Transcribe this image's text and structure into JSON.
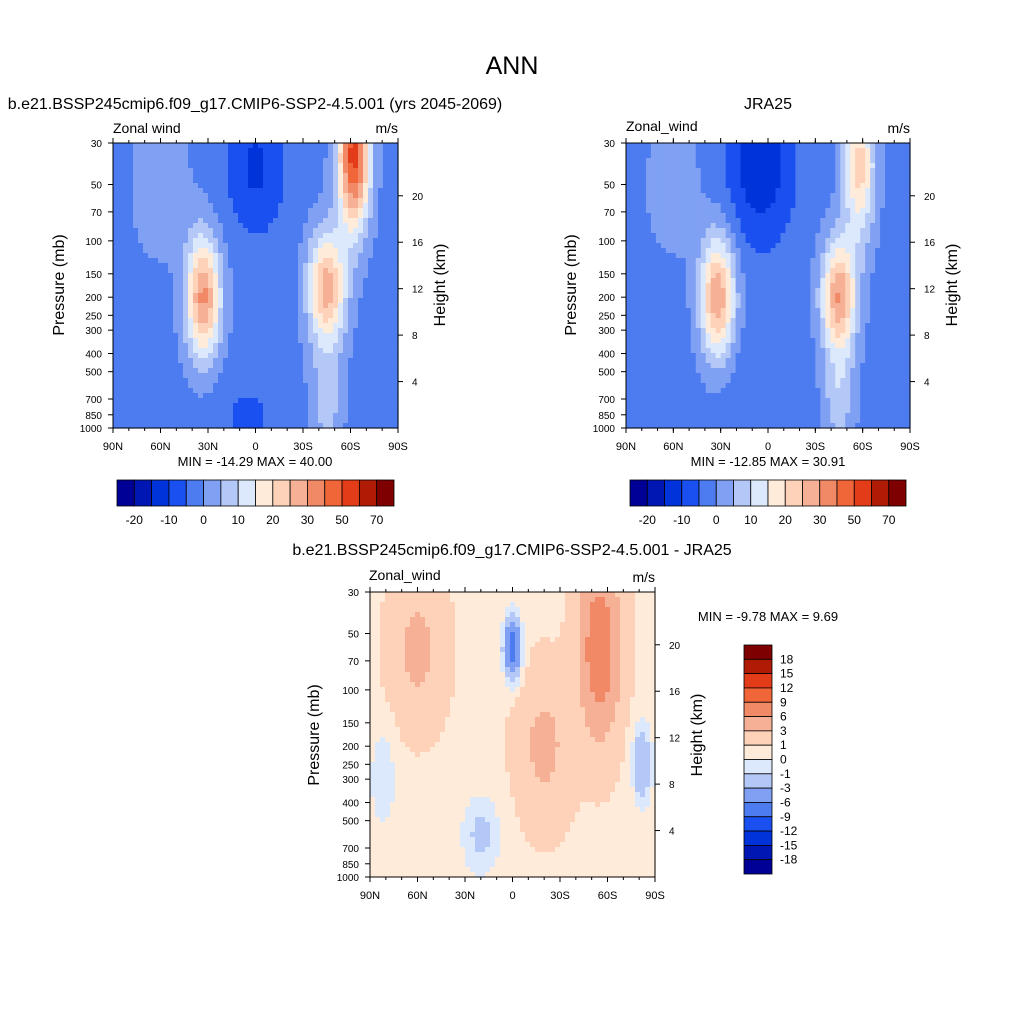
{
  "figure_title": "ANN",
  "panels": [
    {
      "title": "b.e21.BSSP245cmip6.f09_g17.CMIP6-SSP2-4.5.001 (yrs 2045-2069)",
      "left_string": "Zonal wind",
      "right_string": "m/s",
      "ylabel": "Pressure (mb)",
      "y2label": "Height (km)",
      "minmax": "MIN = -14.29  MAX =  40.00"
    },
    {
      "title": "JRA25",
      "left_string": "Zonal_wind",
      "right_string": "m/s",
      "ylabel": "Pressure (mb)",
      "y2label": "Height (km)",
      "minmax": "MIN = -12.85  MAX =  30.91"
    },
    {
      "title": "b.e21.BSSP245cmip6.f09_g17.CMIP6-SSP2-4.5.001 - JRA25",
      "left_string": "Zonal_wind",
      "right_string": "m/s",
      "ylabel": "Pressure (mb)",
      "y2label": "Height (km)",
      "minmax": "MIN =  -9.78  MAX =   9.69"
    }
  ],
  "chart_data": [
    {
      "type": "heatmap",
      "title": "b.e21.BSSP245cmip6.f09_g17.CMIP6-SSP2-4.5.001 (yrs 2045-2069)",
      "variable": "Zonal wind",
      "units": "m/s",
      "x_ticks": [
        "90N",
        "60N",
        "30N",
        "0",
        "30S",
        "60S",
        "90S"
      ],
      "y_ticks": [
        "30",
        "50",
        "70",
        "100",
        "150",
        "200",
        "250",
        "300",
        "400",
        "500",
        "700",
        "850",
        "1000"
      ],
      "y2_ticks": [
        "4",
        "8",
        "12",
        "16",
        "20"
      ],
      "xlabel": "",
      "ylabel": "Pressure (mb)",
      "y2label": "Height (km)",
      "min": -14.29,
      "max": 40.0,
      "colorbar_labels": [
        "-20",
        "-10",
        "0",
        "10",
        "20",
        "30",
        "50",
        "70"
      ],
      "colorbar_colors": [
        "#000096",
        "#0017B3",
        "#0033D9",
        "#1A4FF0",
        "#4D7BF0",
        "#7FA0F3",
        "#B3C8F7",
        "#DCE8FB",
        "#FFEBD9",
        "#FDD2B8",
        "#F6B095",
        "#F18866",
        "#F06639",
        "#E33C18",
        "#B01B06",
        "#7F0000"
      ],
      "features": [
        {
          "desc": "westerly jet NH",
          "lat": 33,
          "p": 200,
          "value": 30
        },
        {
          "desc": "westerly jet SH",
          "lat": -45,
          "p": 150,
          "value": 40
        },
        {
          "desc": "stratospheric westerlies SH",
          "lat": -60,
          "p": 40,
          "value": 40
        },
        {
          "desc": "tropical easterlies",
          "lat": 0,
          "p": 50,
          "value": -10
        }
      ]
    },
    {
      "type": "heatmap",
      "title": "JRA25",
      "variable": "Zonal_wind",
      "units": "m/s",
      "x_ticks": [
        "90N",
        "60N",
        "30N",
        "0",
        "30S",
        "60S",
        "90S"
      ],
      "y_ticks": [
        "30",
        "50",
        "70",
        "100",
        "150",
        "200",
        "250",
        "300",
        "400",
        "500",
        "700",
        "850",
        "1000"
      ],
      "y2_ticks": [
        "4",
        "8",
        "12",
        "16",
        "20"
      ],
      "xlabel": "",
      "ylabel": "Pressure (mb)",
      "y2label": "Height (km)",
      "min": -12.85,
      "max": 30.91,
      "colorbar_labels": [
        "-20",
        "-10",
        "0",
        "10",
        "20",
        "30",
        "50",
        "70"
      ],
      "colorbar_colors": [
        "#000096",
        "#0017B3",
        "#0033D9",
        "#1A4FF0",
        "#4D7BF0",
        "#7FA0F3",
        "#B3C8F7",
        "#DCE8FB",
        "#FFEBD9",
        "#FDD2B8",
        "#F6B095",
        "#F18866",
        "#F06639",
        "#E33C18",
        "#B01B06",
        "#7F0000"
      ],
      "features": [
        {
          "desc": "westerly jet NH",
          "lat": 33,
          "p": 200,
          "value": 30
        },
        {
          "desc": "westerly jet SH",
          "lat": -45,
          "p": 200,
          "value": 31
        },
        {
          "desc": "tropical easterlies",
          "lat": 5,
          "p": 40,
          "value": -12
        }
      ]
    },
    {
      "type": "heatmap",
      "title": "b.e21.BSSP245cmip6.f09_g17.CMIP6-SSP2-4.5.001 - JRA25",
      "variable": "Zonal_wind",
      "units": "m/s",
      "x_ticks": [
        "90N",
        "60N",
        "30N",
        "0",
        "30S",
        "60S",
        "90S"
      ],
      "y_ticks": [
        "30",
        "50",
        "70",
        "100",
        "150",
        "200",
        "250",
        "300",
        "400",
        "500",
        "700",
        "850",
        "1000"
      ],
      "y2_ticks": [
        "4",
        "8",
        "12",
        "16",
        "20"
      ],
      "xlabel": "",
      "ylabel": "Pressure (mb)",
      "y2label": "Height (km)",
      "min": -9.78,
      "max": 9.69,
      "colorbar_labels": [
        "18",
        "15",
        "12",
        "9",
        "6",
        "3",
        "1",
        "0",
        "-1",
        "-3",
        "-6",
        "-9",
        "-12",
        "-15",
        "-18"
      ],
      "colorbar_colors": [
        "#7F0000",
        "#B01B06",
        "#E33C18",
        "#F06639",
        "#F18866",
        "#F6B095",
        "#FDD2B8",
        "#FFEBD9",
        "#DCE8FB",
        "#B3C8F7",
        "#7FA0F3",
        "#4D7BF0",
        "#1A4FF0",
        "#0033D9",
        "#0017B3",
        "#000096"
      ],
      "features": [
        {
          "desc": "positive anomaly SH midlat",
          "lat": -55,
          "p": 40,
          "value": 9.69
        },
        {
          "desc": "negative anomaly equator stratosphere",
          "lat": 0,
          "p": 55,
          "value": -6
        }
      ]
    }
  ]
}
